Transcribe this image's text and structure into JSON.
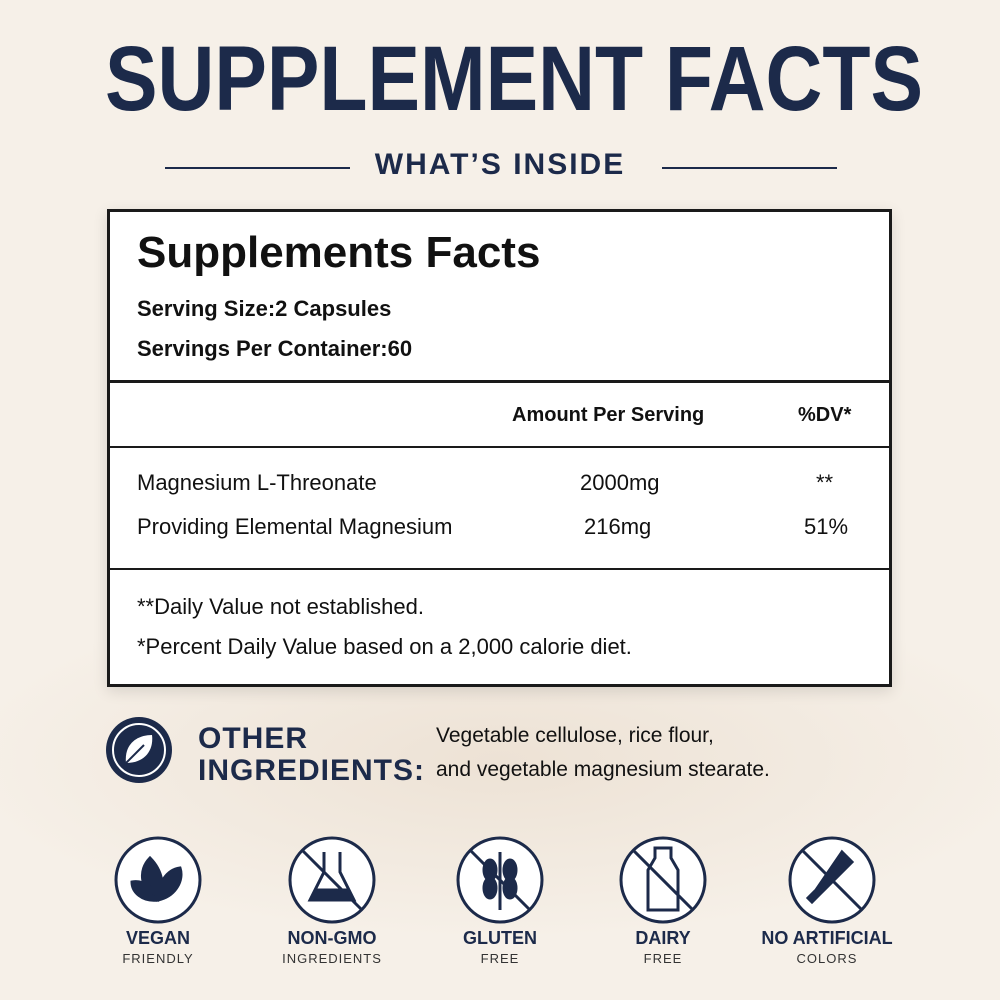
{
  "header": {
    "title": "SUPPLEMENT FACTS",
    "subtitle": "WHAT’S INSIDE"
  },
  "facts": {
    "title": "Supplements Facts",
    "serving_size_label": "Serving Size:",
    "serving_size": "2 Capsules",
    "servings_label": "Servings Per Container:",
    "servings": "60",
    "columns": [
      "Amount Per Serving",
      "%DV*"
    ],
    "rows": [
      [
        "Magnesium L-Threonate",
        "2000mg",
        "**"
      ],
      [
        "Providing Elemental Magnesium",
        "216mg",
        "51%"
      ]
    ],
    "footnotes": [
      "**Daily Value not established.",
      "*Percent Daily Value based on a 2,000 calorie diet."
    ]
  },
  "other_ingredients": {
    "label": [
      "OTHER",
      "INGREDIENTS:"
    ],
    "text": [
      "Vegetable cellulose, rice flour,",
      "and vegetable magnesium stearate."
    ]
  },
  "badges": [
    {
      "title": "VEGAN",
      "subtitle": "FRIENDLY"
    },
    {
      "title": "NON-GMO",
      "subtitle": "INGREDIENTS"
    },
    {
      "title": "GLUTEN",
      "subtitle": "FREE"
    },
    {
      "title": "DAIRY",
      "subtitle": "FREE"
    },
    {
      "title": "NO ARTIFICIAL",
      "subtitle": "COLORS"
    }
  ]
}
